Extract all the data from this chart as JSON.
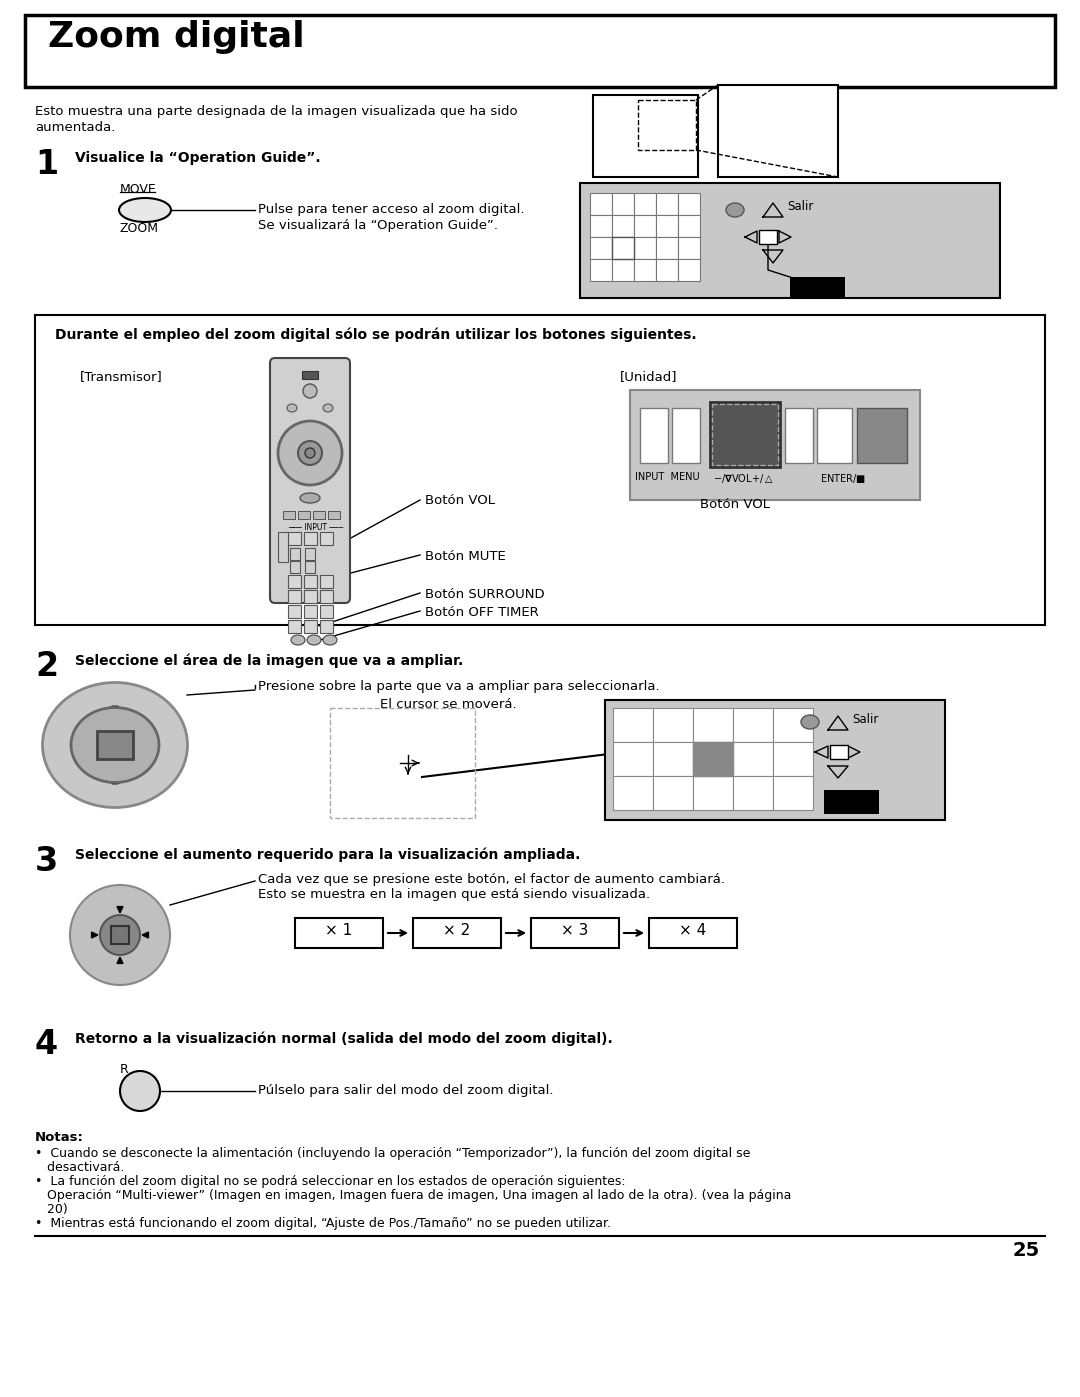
{
  "bg_color": "#ffffff",
  "title": "Zoom digital",
  "page_number": "25",
  "intro_text1": "Esto muestra una parte designada de la imagen visualizada que ha sido",
  "intro_text2": "aumentada.",
  "step1_num": "1",
  "step1_bold": "Visualice la “Operation Guide”.",
  "step1_move": "MOVE",
  "step1_zoom": "ZOOM",
  "step1_line1": "Pulse para tener acceso al zoom digital.",
  "step1_line2": "Se visualizará la “Operation Guide”.",
  "box_header": "Durante el empleo del zoom digital sólo se podrán utilizar los botones siguientes.",
  "transmisor": "[Transmisor]",
  "unidad": "[Unidad]",
  "boton_vol": "Botón VOL",
  "boton_mute": "Botón MUTE",
  "boton_surround": "Botón SURROUND",
  "boton_off_timer": "Botón OFF TIMER",
  "boton_vol2": "Botón VOL",
  "unit_labels": "INPUT  MENU    −/▿VOL+/▵    ENTER/■",
  "step2_num": "2",
  "step2_bold": "Seleccione el área de la imagen que va a ampliar.",
  "step2_line1": "Presione sobre la parte que va a ampliar para seleccionarla.",
  "step2_cursor": "El cursor se moverá.",
  "step3_num": "3",
  "step3_bold": "Seleccione el aumento requerido para la visualización ampliada.",
  "step3_line1": "Cada vez que se presione este botón, el factor de aumento cambiará.",
  "step3_line2": "Esto se muestra en la imagen que está siendo visualizada.",
  "step4_num": "4",
  "step4_bold": "Retorno a la visualización normal (salida del modo del zoom digital).",
  "step4_r": "R",
  "step4_line1": "Púlselo para salir del modo del zoom digital.",
  "notas_bold": "Notas:",
  "nota1": "•  Cuando se desconecte la alimentación (incluyendo la operación “Temporizador”), la función del zoom digital se",
  "nota1b": "   desactivará.",
  "nota2": "•  La función del zoom digital no se podrá seleccionar en los estados de operación siguientes:",
  "nota2b": "   Operación “Multi-viewer” (Imagen en imagen, Imagen fuera de imagen, Una imagen al lado de la otra). (vea la página",
  "nota2c": "   20)",
  "nota3": "•  Mientras está funcionando el zoom digital, “Ajuste de Pos./Tamaño” no se pueden utilizar.",
  "zoom_labels": [
    "× 1",
    "× 2",
    "× 3",
    "× 4"
  ],
  "salir": "Salir",
  "x1_label": "× 1"
}
